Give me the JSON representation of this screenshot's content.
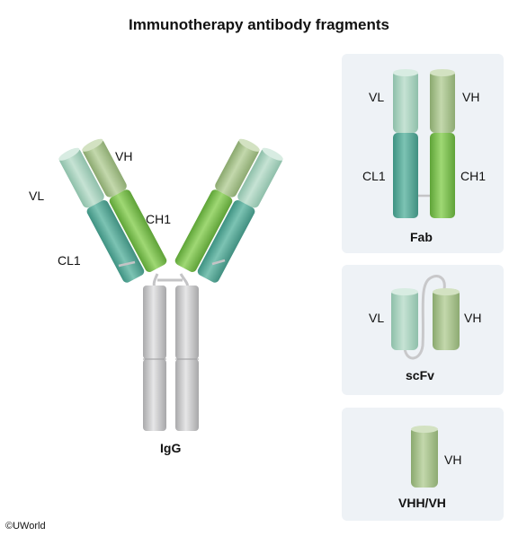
{
  "title": "Immunotherapy antibody fragments",
  "igg": {
    "caption": "IgG",
    "labels": {
      "vh": "VH",
      "vl": "VL",
      "ch1": "CH1",
      "cl1": "CL1"
    }
  },
  "fab": {
    "caption": "Fab",
    "labels": {
      "vl": "VL",
      "vh": "VH",
      "cl1": "CL1",
      "ch1": "CH1"
    }
  },
  "scfv": {
    "caption": "scFv",
    "labels": {
      "vl": "VL",
      "vh": "VH"
    }
  },
  "vhh": {
    "caption": "VHH/VH",
    "labels": {
      "vh": "VH"
    }
  },
  "copyright": "©UWorld",
  "colors": {
    "vl": "#a8cfbd",
    "vh": "#a6bf8c",
    "cl1": "#5aa99c",
    "ch1": "#79c04d",
    "heavy_constant": "#c9c9cb",
    "panel_bg": "#eef2f6"
  }
}
